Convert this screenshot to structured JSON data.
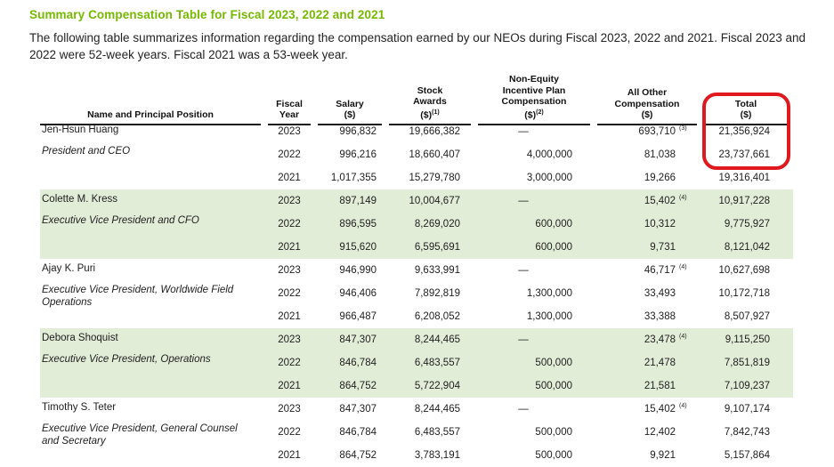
{
  "page": {
    "title": "Summary Compensation Table for Fiscal 2023, 2022 and 2021",
    "intro": "The following table summarizes information regarding the compensation earned by our NEOs during Fiscal 2023, 2022 and 2021.  Fiscal 2023 and 2022 were 52-week years. Fiscal 2021 was a 53-week year."
  },
  "colors": {
    "accent_green": "#76B900",
    "row_green": "#E2EDD8",
    "highlight_red": "#E0191F",
    "text": "#232323"
  },
  "annotation": {
    "shape": "red-rounded-rectangle",
    "circled_header": "Total ($)",
    "circled_values": [
      "21,356,924",
      "23,737,661"
    ]
  },
  "table": {
    "headers": [
      {
        "key": "name",
        "lines": [
          "Name and Principal Position"
        ],
        "sup": ""
      },
      {
        "key": "fiscal-year",
        "lines": [
          "Fiscal",
          "Year"
        ],
        "sup": ""
      },
      {
        "key": "salary",
        "lines": [
          "Salary",
          "($)"
        ],
        "sup": ""
      },
      {
        "key": "stock-awards",
        "lines": [
          "Stock",
          "Awards",
          "($)"
        ],
        "sup": "(1)"
      },
      {
        "key": "non-equity-incentive",
        "lines": [
          "Non-Equity",
          "Incentive Plan",
          "Compensation",
          "($)"
        ],
        "sup": "(2)"
      },
      {
        "key": "all-other-compensation",
        "lines": [
          "All Other",
          "Compensation",
          "($)"
        ],
        "sup": ""
      },
      {
        "key": "total",
        "lines": [
          "Total",
          "($)"
        ],
        "sup": ""
      }
    ],
    "groups": [
      {
        "name": "Jen-Hsun Huang",
        "position": "President and CEO",
        "shaded": false,
        "rows": [
          {
            "year": "2023",
            "salary": "996,832",
            "stock": "19,666,382",
            "neip": "—",
            "aoc": "693,710",
            "aoc_sup": "(3)",
            "total": "21,356,924"
          },
          {
            "year": "2022",
            "salary": "996,216",
            "stock": "18,660,407",
            "neip": "4,000,000",
            "aoc": "81,038",
            "aoc_sup": "",
            "total": "23,737,661"
          },
          {
            "year": "2021",
            "salary": "1,017,355",
            "stock": "15,279,780",
            "neip": "3,000,000",
            "aoc": "19,266",
            "aoc_sup": "",
            "total": "19,316,401"
          }
        ]
      },
      {
        "name": "Colette M. Kress",
        "position": "Executive Vice President and CFO",
        "shaded": true,
        "rows": [
          {
            "year": "2023",
            "salary": "897,149",
            "stock": "10,004,677",
            "neip": "—",
            "aoc": "15,402",
            "aoc_sup": "(4)",
            "total": "10,917,228"
          },
          {
            "year": "2022",
            "salary": "896,595",
            "stock": "8,269,020",
            "neip": "600,000",
            "aoc": "10,312",
            "aoc_sup": "",
            "total": "9,775,927"
          },
          {
            "year": "2021",
            "salary": "915,620",
            "stock": "6,595,691",
            "neip": "600,000",
            "aoc": "9,731",
            "aoc_sup": "",
            "total": "8,121,042"
          }
        ]
      },
      {
        "name": "Ajay K. Puri",
        "position": "Executive Vice President, Worldwide Field Operations",
        "shaded": false,
        "rows": [
          {
            "year": "2023",
            "salary": "946,990",
            "stock": "9,633,991",
            "neip": "—",
            "aoc": "46,717",
            "aoc_sup": "(4)",
            "total": "10,627,698"
          },
          {
            "year": "2022",
            "salary": "946,406",
            "stock": "7,892,819",
            "neip": "1,300,000",
            "aoc": "33,493",
            "aoc_sup": "",
            "total": "10,172,718"
          },
          {
            "year": "2021",
            "salary": "966,487",
            "stock": "6,208,052",
            "neip": "1,300,000",
            "aoc": "33,388",
            "aoc_sup": "",
            "total": "8,507,927"
          }
        ]
      },
      {
        "name": "Debora Shoquist",
        "position": "Executive Vice President, Operations",
        "shaded": true,
        "rows": [
          {
            "year": "2023",
            "salary": "847,307",
            "stock": "8,244,465",
            "neip": "—",
            "aoc": "23,478",
            "aoc_sup": "(4)",
            "total": "9,115,250"
          },
          {
            "year": "2022",
            "salary": "846,784",
            "stock": "6,483,557",
            "neip": "500,000",
            "aoc": "21,478",
            "aoc_sup": "",
            "total": "7,851,819"
          },
          {
            "year": "2021",
            "salary": "864,752",
            "stock": "5,722,904",
            "neip": "500,000",
            "aoc": "21,581",
            "aoc_sup": "",
            "total": "7,109,237"
          }
        ]
      },
      {
        "name": "Timothy S. Teter",
        "position": "Executive Vice President, General Counsel and Secretary",
        "shaded": false,
        "rows": [
          {
            "year": "2023",
            "salary": "847,307",
            "stock": "8,244,465",
            "neip": "—",
            "aoc": "15,402",
            "aoc_sup": "(4)",
            "total": "9,107,174"
          },
          {
            "year": "2022",
            "salary": "846,784",
            "stock": "6,483,557",
            "neip": "500,000",
            "aoc": "12,402",
            "aoc_sup": "",
            "total": "7,842,743"
          },
          {
            "year": "2021",
            "salary": "864,752",
            "stock": "3,783,191",
            "neip": "500,000",
            "aoc": "9,921",
            "aoc_sup": "",
            "total": "5,157,864"
          }
        ]
      }
    ]
  }
}
